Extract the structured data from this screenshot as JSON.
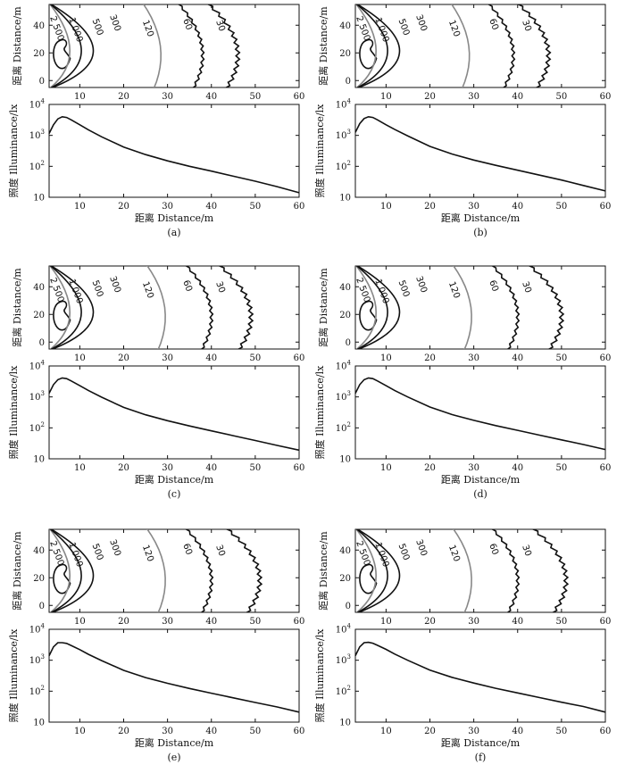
{
  "chart_data": [
    {
      "type": "contour_and_line",
      "panel_label": "(a)",
      "contour": {
        "ylabel": "距离 Distance/m",
        "xlim": [
          3,
          60
        ],
        "ylim": [
          -5,
          55
        ],
        "xticks": [
          10,
          20,
          30,
          40,
          50,
          60
        ],
        "yticks": [
          0,
          20,
          40
        ],
        "levels": [
          {
            "value": 2500,
            "label": "2 500",
            "color": "#111111",
            "x_extent": 7
          },
          {
            "value": 1000,
            "label": "1 000",
            "color": "#888888",
            "x_extent": 12
          },
          {
            "value": 500,
            "label": "500",
            "color": "#111111",
            "x_extent": 17
          },
          {
            "value": 300,
            "label": "300",
            "color": "#111111",
            "x_extent": 21
          },
          {
            "value": 120,
            "label": "120",
            "color": "#888888",
            "x_extent": 28.5
          },
          {
            "value": 60,
            "label": "60",
            "color": "#111111",
            "x_extent": 38
          },
          {
            "value": 30,
            "label": "30",
            "color": "#111111",
            "x_extent": 46
          }
        ]
      },
      "line": {
        "xlabel": "距离 Distance/m",
        "ylabel": "照度 Illuminance/lx",
        "xlim": [
          3,
          60
        ],
        "ylim_log": [
          10,
          10000
        ],
        "xticks": [
          10,
          20,
          30,
          40,
          50,
          60
        ],
        "ytick_labels": [
          {
            "base": "10",
            "exp": ""
          },
          {
            "base": "10",
            "exp": "2"
          },
          {
            "base": "10",
            "exp": "3"
          },
          {
            "base": "10",
            "exp": "4"
          }
        ],
        "x": [
          3,
          4,
          5,
          6,
          7,
          8,
          10,
          12,
          15,
          20,
          25,
          30,
          35,
          40,
          45,
          50,
          55,
          60
        ],
        "y": [
          1150,
          2200,
          3400,
          4000,
          3800,
          3200,
          2200,
          1500,
          900,
          420,
          240,
          150,
          100,
          70,
          48,
          33,
          22,
          14
        ]
      }
    },
    {
      "type": "contour_and_line",
      "panel_label": "(b)",
      "contour": {
        "ylabel": "距离 Distance/m",
        "xlim": [
          3,
          60
        ],
        "ylim": [
          -5,
          55
        ],
        "xticks": [
          10,
          20,
          30,
          40,
          50,
          60
        ],
        "yticks": [
          0,
          20,
          40
        ],
        "levels": [
          {
            "value": 2500,
            "label": "2 500",
            "color": "#111111",
            "x_extent": 7
          },
          {
            "value": 1000,
            "label": "1 000",
            "color": "#888888",
            "x_extent": 12
          },
          {
            "value": 500,
            "label": "500",
            "color": "#111111",
            "x_extent": 17
          },
          {
            "value": 300,
            "label": "300",
            "color": "#111111",
            "x_extent": 21
          },
          {
            "value": 120,
            "label": "120",
            "color": "#888888",
            "x_extent": 29
          },
          {
            "value": 60,
            "label": "60",
            "color": "#111111",
            "x_extent": 39
          },
          {
            "value": 30,
            "label": "30",
            "color": "#111111",
            "x_extent": 47
          }
        ]
      },
      "line": {
        "xlabel": "距离 Distance/m",
        "ylabel": "照度 Illuminance/lx",
        "xlim": [
          3,
          60
        ],
        "ylim_log": [
          10,
          10000
        ],
        "xticks": [
          10,
          20,
          30,
          40,
          50,
          60
        ],
        "ytick_labels": [
          {
            "base": "10",
            "exp": ""
          },
          {
            "base": "10",
            "exp": "2"
          },
          {
            "base": "10",
            "exp": "3"
          },
          {
            "base": "10",
            "exp": "4"
          }
        ],
        "x": [
          3,
          4,
          5,
          6,
          7,
          8,
          10,
          12,
          15,
          20,
          25,
          30,
          35,
          40,
          45,
          50,
          55,
          60
        ],
        "y": [
          1250,
          2400,
          3500,
          4000,
          3800,
          3200,
          2200,
          1550,
          950,
          440,
          250,
          160,
          108,
          75,
          52,
          36,
          24,
          16
        ]
      }
    },
    {
      "type": "contour_and_line",
      "panel_label": "(c)",
      "contour": {
        "ylabel": "距离 Distance/m",
        "xlim": [
          3,
          60
        ],
        "ylim": [
          -5,
          55
        ],
        "xticks": [
          10,
          20,
          30,
          40,
          50,
          60
        ],
        "yticks": [
          0,
          20,
          40
        ],
        "levels": [
          {
            "value": 2500,
            "label": "2 500",
            "color": "#111111",
            "x_extent": 7
          },
          {
            "value": 1000,
            "label": "1 000",
            "color": "#888888",
            "x_extent": 12
          },
          {
            "value": 500,
            "label": "500",
            "color": "#111111",
            "x_extent": 17
          },
          {
            "value": 300,
            "label": "300",
            "color": "#111111",
            "x_extent": 21
          },
          {
            "value": 120,
            "label": "120",
            "color": "#888888",
            "x_extent": 29.5
          },
          {
            "value": 60,
            "label": "60",
            "color": "#111111",
            "x_extent": 40
          },
          {
            "value": 30,
            "label": "30",
            "color": "#111111",
            "x_extent": 49
          }
        ]
      },
      "line": {
        "xlabel": "距离 Distance/m",
        "ylabel": "照度 Illuminance/lx",
        "xlim": [
          3,
          60
        ],
        "ylim_log": [
          10,
          10000
        ],
        "xticks": [
          10,
          20,
          30,
          40,
          50,
          60
        ],
        "ytick_labels": [
          {
            "base": "10",
            "exp": ""
          },
          {
            "base": "10",
            "exp": "2"
          },
          {
            "base": "10",
            "exp": "3"
          },
          {
            "base": "10",
            "exp": "4"
          }
        ],
        "x": [
          3,
          4,
          5,
          6,
          7,
          8,
          10,
          12,
          15,
          20,
          25,
          30,
          35,
          40,
          45,
          50,
          55,
          60
        ],
        "y": [
          1300,
          2500,
          3600,
          4100,
          3900,
          3300,
          2300,
          1600,
          980,
          460,
          265,
          170,
          115,
          80,
          56,
          39,
          27,
          19
        ]
      }
    },
    {
      "type": "contour_and_line",
      "panel_label": "(d)",
      "contour": {
        "ylabel": "距离 Distance/m",
        "xlim": [
          3,
          60
        ],
        "ylim": [
          -5,
          55
        ],
        "xticks": [
          10,
          20,
          30,
          40,
          50,
          60
        ],
        "yticks": [
          0,
          20,
          40
        ],
        "levels": [
          {
            "value": 2500,
            "label": "2 500",
            "color": "#111111",
            "x_extent": 7
          },
          {
            "value": 1000,
            "label": "1 000",
            "color": "#888888",
            "x_extent": 12
          },
          {
            "value": 500,
            "label": "500",
            "color": "#111111",
            "x_extent": 17
          },
          {
            "value": 300,
            "label": "300",
            "color": "#111111",
            "x_extent": 21
          },
          {
            "value": 120,
            "label": "120",
            "color": "#888888",
            "x_extent": 29.5
          },
          {
            "value": 60,
            "label": "60",
            "color": "#111111",
            "x_extent": 40
          },
          {
            "value": 30,
            "label": "30",
            "color": "#111111",
            "x_extent": 50
          }
        ]
      },
      "line": {
        "xlabel": "距离 Distance/m",
        "ylabel": "照度 Illuminance/lx",
        "xlim": [
          3,
          60
        ],
        "ylim_log": [
          10,
          10000
        ],
        "xticks": [
          10,
          20,
          30,
          40,
          50,
          60
        ],
        "ytick_labels": [
          {
            "base": "10",
            "exp": ""
          },
          {
            "base": "10",
            "exp": "2"
          },
          {
            "base": "10",
            "exp": "3"
          },
          {
            "base": "10",
            "exp": "4"
          }
        ],
        "x": [
          3,
          4,
          5,
          6,
          7,
          8,
          10,
          12,
          15,
          20,
          25,
          30,
          35,
          40,
          45,
          50,
          55,
          60
        ],
        "y": [
          1300,
          2500,
          3600,
          4100,
          3900,
          3300,
          2300,
          1600,
          990,
          470,
          270,
          175,
          118,
          83,
          58,
          41,
          29,
          20
        ]
      }
    },
    {
      "type": "contour_and_line",
      "panel_label": "(e)",
      "contour": {
        "ylabel": "距离 Distance/m",
        "xlim": [
          3,
          60
        ],
        "ylim": [
          -5,
          55
        ],
        "xticks": [
          10,
          20,
          30,
          40,
          50,
          60
        ],
        "yticks": [
          0,
          20,
          40
        ],
        "levels": [
          {
            "value": 2500,
            "label": "2 500",
            "color": "#111111",
            "x_extent": 7
          },
          {
            "value": 1000,
            "label": "1 000",
            "color": "#888888",
            "x_extent": 12
          },
          {
            "value": 500,
            "label": "500",
            "color": "#111111",
            "x_extent": 17
          },
          {
            "value": 300,
            "label": "300",
            "color": "#111111",
            "x_extent": 21
          },
          {
            "value": 120,
            "label": "120",
            "color": "#888888",
            "x_extent": 29.5
          },
          {
            "value": 60,
            "label": "60",
            "color": "#111111",
            "x_extent": 40
          },
          {
            "value": 30,
            "label": "30",
            "color": "#111111",
            "x_extent": 51
          }
        ]
      },
      "line": {
        "xlabel": "距离 Distance/m",
        "ylabel": "照度 Illuminance/lx",
        "xlim": [
          3,
          60
        ],
        "ylim_log": [
          10,
          10000
        ],
        "xticks": [
          10,
          20,
          30,
          40,
          50,
          60
        ],
        "ytick_labels": [
          {
            "base": "10",
            "exp": ""
          },
          {
            "base": "10",
            "exp": "2"
          },
          {
            "base": "10",
            "exp": "3"
          },
          {
            "base": "10",
            "exp": "4"
          }
        ],
        "x": [
          3,
          4,
          5,
          6,
          7,
          8,
          10,
          12,
          15,
          20,
          25,
          30,
          35,
          40,
          45,
          50,
          55,
          60
        ],
        "y": [
          1400,
          2700,
          3700,
          3700,
          3500,
          3000,
          2200,
          1550,
          970,
          470,
          275,
          180,
          122,
          86,
          61,
          43,
          31,
          21
        ]
      }
    },
    {
      "type": "contour_and_line",
      "panel_label": "(f)",
      "contour": {
        "ylabel": "距离 Distance/m",
        "xlim": [
          3,
          60
        ],
        "ylim": [
          -5,
          55
        ],
        "xticks": [
          10,
          20,
          30,
          40,
          50,
          60
        ],
        "yticks": [
          0,
          20,
          40
        ],
        "levels": [
          {
            "value": 2500,
            "label": "2 500",
            "color": "#111111",
            "x_extent": 7
          },
          {
            "value": 1000,
            "label": "1 000",
            "color": "#888888",
            "x_extent": 12
          },
          {
            "value": 500,
            "label": "500",
            "color": "#111111",
            "x_extent": 17
          },
          {
            "value": 300,
            "label": "300",
            "color": "#111111",
            "x_extent": 21
          },
          {
            "value": 120,
            "label": "120",
            "color": "#888888",
            "x_extent": 29.5
          },
          {
            "value": 60,
            "label": "60",
            "color": "#111111",
            "x_extent": 40
          },
          {
            "value": 30,
            "label": "30",
            "color": "#111111",
            "x_extent": 51
          }
        ]
      },
      "line": {
        "xlabel": "距离 Distance/m",
        "ylabel": "照度 Illuminance/lx",
        "xlim": [
          3,
          60
        ],
        "ylim_log": [
          10,
          10000
        ],
        "xticks": [
          10,
          20,
          30,
          40,
          50,
          60
        ],
        "ytick_labels": [
          {
            "base": "10",
            "exp": ""
          },
          {
            "base": "10",
            "exp": "2"
          },
          {
            "base": "10",
            "exp": "3"
          },
          {
            "base": "10",
            "exp": "4"
          }
        ],
        "x": [
          3,
          4,
          5,
          6,
          7,
          8,
          10,
          12,
          15,
          20,
          25,
          30,
          35,
          40,
          45,
          50,
          55,
          60
        ],
        "y": [
          1400,
          2700,
          3700,
          3800,
          3550,
          3050,
          2250,
          1580,
          990,
          480,
          280,
          183,
          124,
          88,
          62,
          44,
          32,
          21
        ]
      }
    }
  ]
}
